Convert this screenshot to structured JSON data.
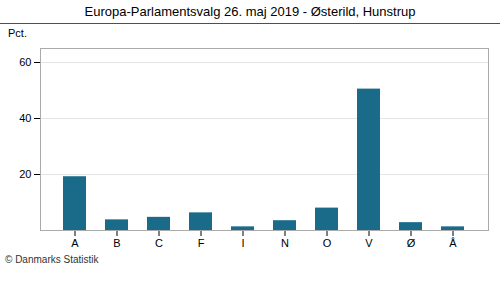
{
  "chart_data": {
    "type": "bar",
    "title": "Europa-Parlamentsvalg 26. maj 2019 - Østerild, Hunstrup",
    "ylabel": "Pct.",
    "categories": [
      "A",
      "B",
      "C",
      "F",
      "I",
      "N",
      "O",
      "V",
      "Ø",
      "Å"
    ],
    "values": [
      19.2,
      3.8,
      4.7,
      6.3,
      1.3,
      3.5,
      8.0,
      50.5,
      2.8,
      1.3
    ],
    "color": "#1a6b8a",
    "ylim": [
      0,
      65
    ],
    "yticks": [
      20,
      40,
      60
    ],
    "grid": true,
    "annotations": [
      "© Danmarks Statistik"
    ]
  }
}
